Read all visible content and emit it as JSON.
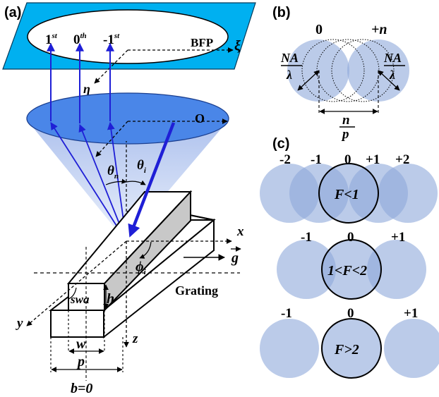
{
  "panel_a": {
    "label": "(a)",
    "orders": {
      "first": "1",
      "first_sup": "st",
      "zero": "0",
      "zero_sup": "th",
      "minus_first": "-1",
      "minus_first_sup": "st"
    },
    "bfp": "BFP",
    "xi": "ξ",
    "eta": "η",
    "objective": "O",
    "theta_n": "θ",
    "theta_n_sub": "n",
    "theta_i": "θ",
    "theta_i_sub": "i",
    "x_axis": "x",
    "y_axis": "y",
    "z_axis": "z",
    "phi": "ϕ",
    "phi_sub": "i",
    "g_vec": "g",
    "grating": "Grating",
    "swa": "swa",
    "h": "h",
    "w": "w",
    "p": "p",
    "b_eq": "b=0"
  },
  "panel_b": {
    "label": "(b)",
    "zero": "0",
    "plus_n": "+n",
    "na_num": "NA",
    "na_den": "λ",
    "n_num": "n",
    "p_den": "p"
  },
  "panel_c": {
    "label": "(c)",
    "row1": {
      "orders": [
        "-2",
        "-1",
        "0",
        "+1",
        "+2"
      ],
      "condition": "F<1"
    },
    "row2": {
      "orders": [
        "-1",
        "0",
        "+1"
      ],
      "condition": "1<F<2"
    },
    "row3": {
      "orders": [
        "-1",
        "0",
        "+1"
      ],
      "condition": "F>2"
    }
  },
  "colors": {
    "plane": "#00b0f0",
    "lens": "#4a86e8",
    "cone": "#b7c9ef",
    "circle_fill": "#8ea9db",
    "ray": "#1f1fd6",
    "grating_top": "#c8c8c8"
  }
}
